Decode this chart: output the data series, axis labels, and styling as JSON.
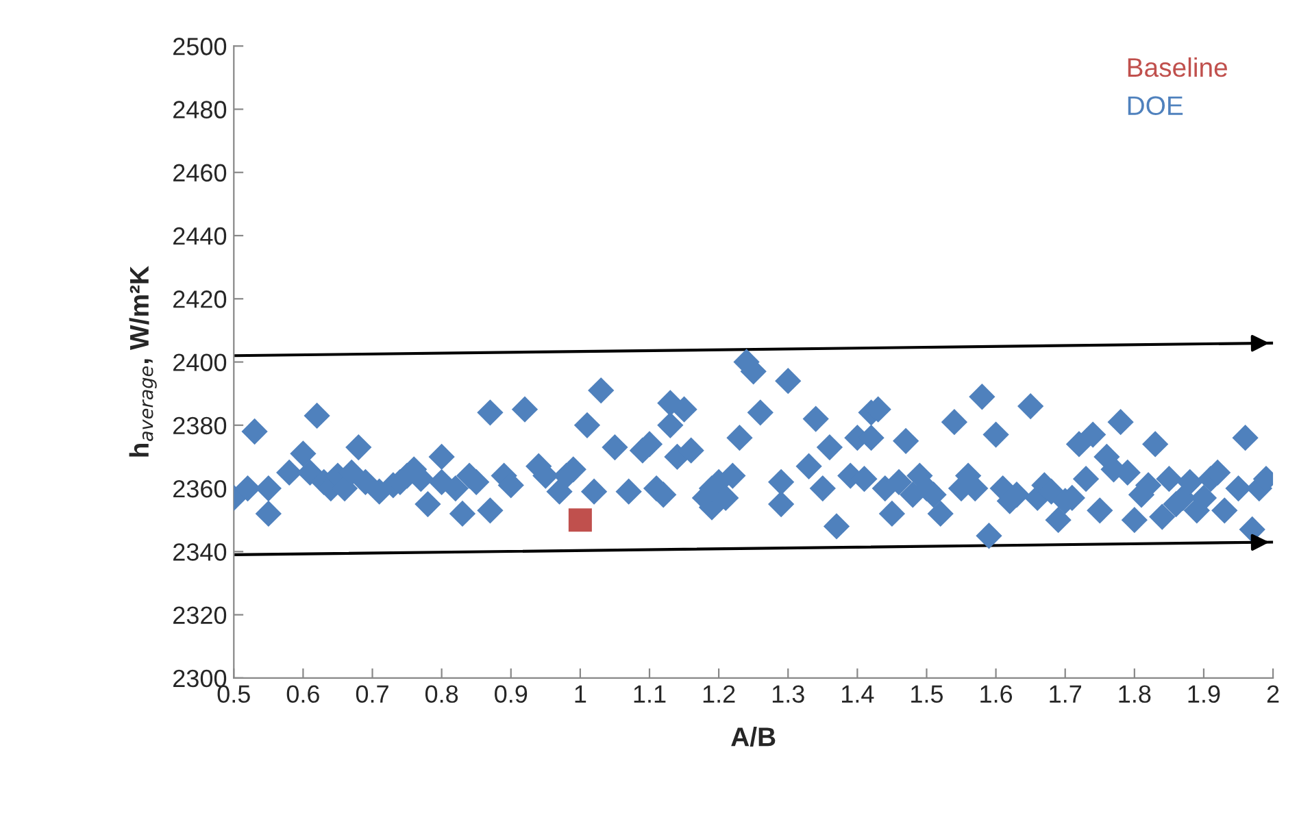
{
  "chart_data": {
    "type": "scatter",
    "xlabel": "A/B",
    "ylabel": "h$_{average}$, W/m²K",
    "xlim": [
      0.5,
      2
    ],
    "ylim": [
      2300,
      2500
    ],
    "xticks": [
      0.5,
      0.6,
      0.7,
      0.8,
      0.9,
      1,
      1.1,
      1.2,
      1.3,
      1.4,
      1.5,
      1.6,
      1.7,
      1.8,
      1.9,
      2
    ],
    "yticks": [
      2300,
      2320,
      2340,
      2360,
      2380,
      2400,
      2420,
      2440,
      2460,
      2480,
      2500
    ],
    "grid": false,
    "legend": "top right",
    "series": [
      {
        "name": "DOE",
        "color": "#4f81bd",
        "marker": "diamond",
        "x": [
          0.5,
          0.52,
          0.53,
          0.55,
          0.55,
          0.58,
          0.6,
          0.61,
          0.62,
          0.63,
          0.64,
          0.65,
          0.66,
          0.67,
          0.68,
          0.69,
          0.71,
          0.73,
          0.74,
          0.75,
          0.76,
          0.77,
          0.78,
          0.8,
          0.8,
          0.82,
          0.83,
          0.84,
          0.85,
          0.87,
          0.87,
          0.89,
          0.9,
          0.92,
          0.94,
          0.95,
          0.97,
          0.98,
          0.99,
          1.01,
          1.02,
          1.03,
          1.05,
          1.07,
          1.09,
          1.1,
          1.11,
          1.12,
          1.13,
          1.13,
          1.14,
          1.15,
          1.16,
          1.18,
          1.19,
          1.19,
          1.2,
          1.21,
          1.22,
          1.23,
          1.24,
          1.25,
          1.26,
          1.29,
          1.29,
          1.3,
          1.33,
          1.34,
          1.35,
          1.36,
          1.37,
          1.39,
          1.4,
          1.41,
          1.42,
          1.42,
          1.43,
          1.44,
          1.45,
          1.46,
          1.47,
          1.48,
          1.49,
          1.5,
          1.51,
          1.52,
          1.54,
          1.55,
          1.56,
          1.57,
          1.58,
          1.59,
          1.6,
          1.61,
          1.62,
          1.63,
          1.65,
          1.66,
          1.67,
          1.68,
          1.69,
          1.7,
          1.71,
          1.72,
          1.73,
          1.74,
          1.75,
          1.76,
          1.77,
          1.78,
          1.79,
          1.8,
          1.81,
          1.82,
          1.83,
          1.84,
          1.85,
          1.86,
          1.87,
          1.88,
          1.89,
          1.9,
          1.91,
          1.92,
          1.93,
          1.95,
          1.96,
          1.97,
          1.98,
          1.99
        ],
        "values": [
          2357,
          2360,
          2378,
          2352,
          2360,
          2365,
          2371,
          2365,
          2383,
          2362,
          2360,
          2364,
          2360,
          2365,
          2373,
          2362,
          2359,
          2361,
          2362,
          2364,
          2366,
          2363,
          2355,
          2370,
          2362,
          2360,
          2352,
          2364,
          2362,
          2384,
          2353,
          2364,
          2361,
          2385,
          2367,
          2364,
          2359,
          2364,
          2366,
          2380,
          2359,
          2391,
          2373,
          2359,
          2372,
          2374,
          2360,
          2358,
          2387,
          2380,
          2370,
          2385,
          2372,
          2357,
          2354,
          2360,
          2362,
          2357,
          2364,
          2376,
          2400,
          2397,
          2384,
          2355,
          2362,
          2394,
          2367,
          2382,
          2360,
          2373,
          2348,
          2364,
          2376,
          2363,
          2384,
          2376,
          2385,
          2360,
          2352,
          2362,
          2375,
          2358,
          2364,
          2360,
          2358,
          2352,
          2381,
          2360,
          2364,
          2360,
          2389,
          2345,
          2377,
          2360,
          2356,
          2358,
          2386,
          2357,
          2361,
          2359,
          2350,
          2356,
          2357,
          2374,
          2363,
          2377,
          2353,
          2370,
          2366,
          2381,
          2365,
          2350,
          2358,
          2361,
          2374,
          2351,
          2363,
          2355,
          2357,
          2362,
          2353,
          2357,
          2363,
          2365,
          2353,
          2360,
          2376,
          2347,
          2360,
          2363
        ]
      },
      {
        "name": "Baseline",
        "color": "#c0504d",
        "marker": "square",
        "x": [
          1.0
        ],
        "values": [
          2350
        ]
      },
      {
        "type": "line",
        "color": "#000000",
        "x": [
          0.5,
          2.0
        ],
        "values": [
          2402,
          2406
        ]
      },
      {
        "type": "line",
        "color": "#000000",
        "x": [
          0.5,
          2.0
        ],
        "values": [
          2339,
          2343
        ]
      }
    ]
  }
}
